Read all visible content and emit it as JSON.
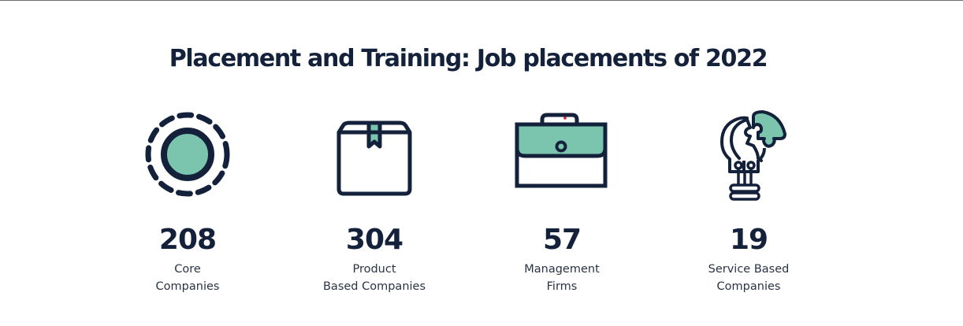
{
  "colors": {
    "navy": "#14213a",
    "teal": "#7bc5af",
    "accent_red": "#e0202a"
  },
  "title": "Placement and Training: Job placements of 2022",
  "stats": [
    {
      "icon": "target-circle-icon",
      "value": "208",
      "label_lines": [
        "Core",
        "Companies"
      ]
    },
    {
      "icon": "package-box-icon",
      "value": "304",
      "label_lines": [
        "Product",
        "Based Companies"
      ]
    },
    {
      "icon": "briefcase-icon",
      "value": "57",
      "label_lines": [
        "Management",
        "Firms"
      ]
    },
    {
      "icon": "lightbulb-puzzle-icon",
      "value": "19",
      "label_lines": [
        "Service Based",
        "Companies"
      ]
    }
  ]
}
